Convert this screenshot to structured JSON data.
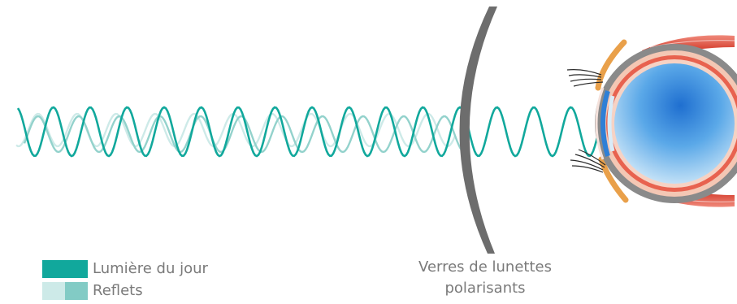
{
  "legend": {
    "items": [
      {
        "label": "Lumière du jour",
        "color": "#11a89c"
      },
      {
        "label": "Reflets",
        "colors": [
          "#cdeae8",
          "#82cbc5"
        ]
      }
    ]
  },
  "lens": {
    "label_line1": "Verres de lunettes",
    "label_line2": "polarisants",
    "color": "#6d6d6d"
  },
  "colors": {
    "daylight_wave": "#11a89c",
    "reflection_wave_light": "#cdeae8",
    "reflection_wave_mid": "#93d2cc",
    "iris": "#3f8fdc",
    "eyelid": "#e9a04a",
    "muscle": "#e35d4d"
  },
  "icons": [
    "eye-illustration",
    "eyelash-icon",
    "muscle-icon"
  ]
}
